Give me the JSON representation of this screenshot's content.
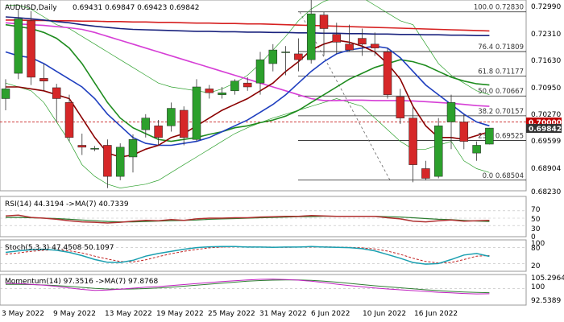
{
  "header": {
    "symbol_title": "AUDUSD,Daily",
    "ohlc_text": "0.69431 0.69847 0.69423 0.69842"
  },
  "colors": {
    "bull": "#2ca02c",
    "bear": "#d62728",
    "ma_dark_red": "#8b0000",
    "ma_blue": "#1f3fbf",
    "ma_green": "#1e8c1e",
    "ma_magenta": "#d63fd6",
    "ma_red": "#d62020",
    "ma_navy": "#1a237e",
    "bollinger": "#2ca02c",
    "fib_line": "#222222",
    "level_red": "#c00000",
    "rsi": "#b03030",
    "rsi_ma": "#2e7d32",
    "stoch_k": "#1a9fb0",
    "stoch_d": "#c02020",
    "momentum": "#c020c0",
    "momentum_ma": "#2e7d32"
  },
  "main_axis": {
    "ticks": [
      "0.72990",
      "0.72310",
      "0.71630",
      "0.70950",
      "0.70270",
      "0.69599",
      "0.68904",
      "0.68230"
    ]
  },
  "price_labels": {
    "red_level": "0.70000",
    "current": "0.69842"
  },
  "fib_levels": [
    {
      "label": "100.0 0.72830",
      "price": 0.7283
    },
    {
      "label": "76.4 0.71809",
      "price": 0.71809
    },
    {
      "label": "61.8 0.71177",
      "price": 0.71177
    },
    {
      "label": "50.0 0.70667",
      "price": 0.70667
    },
    {
      "label": "38.2 0.70157",
      "price": 0.70157
    },
    {
      "label": "23.6 0.69525",
      "price": 0.69525
    },
    {
      "label": "0.0 0.68504",
      "price": 0.68504
    }
  ],
  "x_labels": [
    "3 May 2022",
    "9 May 2022",
    "13 May 2022",
    "19 May 2022",
    "25 May 2022",
    "31 May 2022",
    "6 Jun 2022",
    "10 Jun 2022",
    "16 Jun 2022"
  ],
  "rsi": {
    "label": "RSI(14) 44.3194  ->MA(7) 40.7339",
    "ticks": [
      "70",
      "50",
      "30",
      "0"
    ]
  },
  "stoch": {
    "label": "Stoch(5,3,3) 47.4508 50.1097",
    "ticks": [
      "100",
      "80",
      "20"
    ]
  },
  "momentum": {
    "label": "Momentum(14) 97.3516  ->MA(7) 97.8768",
    "ticks": [
      "105.2964",
      "100",
      "92.5389"
    ]
  },
  "chart_data": {
    "type": "candlestick",
    "title": "AUDUSD,Daily",
    "ylim": [
      0.6823,
      0.7315
    ],
    "candles": [
      {
        "o": 0.706,
        "h": 0.711,
        "l": 0.703,
        "c": 0.7085
      },
      {
        "o": 0.7125,
        "h": 0.729,
        "l": 0.711,
        "c": 0.7265
      },
      {
        "o": 0.726,
        "h": 0.7285,
        "l": 0.7095,
        "c": 0.7115
      },
      {
        "o": 0.7112,
        "h": 0.715,
        "l": 0.708,
        "c": 0.7105
      },
      {
        "o": 0.7088,
        "h": 0.7098,
        "l": 0.7,
        "c": 0.706
      },
      {
        "o": 0.705,
        "h": 0.707,
        "l": 0.695,
        "c": 0.696
      },
      {
        "o": 0.694,
        "h": 0.697,
        "l": 0.6915,
        "c": 0.6935
      },
      {
        "o": 0.693,
        "h": 0.6938,
        "l": 0.6925,
        "c": 0.6932
      },
      {
        "o": 0.694,
        "h": 0.6955,
        "l": 0.683,
        "c": 0.686
      },
      {
        "o": 0.686,
        "h": 0.6945,
        "l": 0.685,
        "c": 0.6935
      },
      {
        "o": 0.691,
        "h": 0.6968,
        "l": 0.687,
        "c": 0.6955
      },
      {
        "o": 0.698,
        "h": 0.702,
        "l": 0.696,
        "c": 0.701
      },
      {
        "o": 0.699,
        "h": 0.7005,
        "l": 0.694,
        "c": 0.696
      },
      {
        "o": 0.699,
        "h": 0.705,
        "l": 0.6975,
        "c": 0.7035
      },
      {
        "o": 0.703,
        "h": 0.704,
        "l": 0.694,
        "c": 0.696
      },
      {
        "o": 0.6955,
        "h": 0.711,
        "l": 0.695,
        "c": 0.709
      },
      {
        "o": 0.7085,
        "h": 0.7095,
        "l": 0.706,
        "c": 0.7075
      },
      {
        "o": 0.707,
        "h": 0.709,
        "l": 0.706,
        "c": 0.7075
      },
      {
        "o": 0.708,
        "h": 0.711,
        "l": 0.707,
        "c": 0.7105
      },
      {
        "o": 0.71,
        "h": 0.7115,
        "l": 0.708,
        "c": 0.709
      },
      {
        "o": 0.71,
        "h": 0.718,
        "l": 0.707,
        "c": 0.716
      },
      {
        "o": 0.715,
        "h": 0.72,
        "l": 0.713,
        "c": 0.7185
      },
      {
        "o": 0.718,
        "h": 0.7195,
        "l": 0.712,
        "c": 0.718
      },
      {
        "o": 0.7175,
        "h": 0.7215,
        "l": 0.713,
        "c": 0.716
      },
      {
        "o": 0.716,
        "h": 0.732,
        "l": 0.715,
        "c": 0.7278
      },
      {
        "o": 0.7275,
        "h": 0.7283,
        "l": 0.717,
        "c": 0.724
      },
      {
        "o": 0.7225,
        "h": 0.7255,
        "l": 0.7175,
        "c": 0.7205
      },
      {
        "o": 0.72,
        "h": 0.725,
        "l": 0.718,
        "c": 0.7185
      },
      {
        "o": 0.7215,
        "h": 0.724,
        "l": 0.717,
        "c": 0.72
      },
      {
        "o": 0.72,
        "h": 0.723,
        "l": 0.717,
        "c": 0.719
      },
      {
        "o": 0.718,
        "h": 0.719,
        "l": 0.706,
        "c": 0.707
      },
      {
        "o": 0.7065,
        "h": 0.7085,
        "l": 0.6995,
        "c": 0.701
      },
      {
        "o": 0.701,
        "h": 0.704,
        "l": 0.6845,
        "c": 0.689
      },
      {
        "o": 0.688,
        "h": 0.69,
        "l": 0.685,
        "c": 0.6855
      },
      {
        "o": 0.686,
        "h": 0.701,
        "l": 0.6855,
        "c": 0.699
      },
      {
        "o": 0.7,
        "h": 0.707,
        "l": 0.693,
        "c": 0.705
      },
      {
        "o": 0.7,
        "h": 0.702,
        "l": 0.693,
        "c": 0.695
      },
      {
        "o": 0.692,
        "h": 0.695,
        "l": 0.69,
        "c": 0.694
      },
      {
        "o": 0.6943,
        "h": 0.69847,
        "l": 0.69423,
        "c": 0.69842
      }
    ],
    "overlays": [
      {
        "name": "ma_red",
        "color": "#d62020",
        "values": [
          0.7262,
          0.7262,
          0.7261,
          0.7261,
          0.726,
          0.726,
          0.7259,
          0.7259,
          0.7258,
          0.7258,
          0.7257,
          0.7257,
          0.7256,
          0.7256,
          0.7255,
          0.7254,
          0.7254,
          0.7253,
          0.7253,
          0.7252,
          0.7252,
          0.7251,
          0.725,
          0.7249,
          0.7248,
          0.7247,
          0.7246,
          0.7245,
          0.7244,
          0.7243,
          0.7242,
          0.7241,
          0.724,
          0.7239,
          0.7238,
          0.7237,
          0.7236,
          0.7235,
          0.7234
        ]
      },
      {
        "name": "ma_navy",
        "color": "#1a237e",
        "values": [
          0.727,
          0.7268,
          0.7265,
          0.7262,
          0.7258,
          0.7255,
          0.725,
          0.7246,
          0.7243,
          0.724,
          0.7238,
          0.7237,
          0.7236,
          0.7235,
          0.7234,
          0.7233,
          0.7233,
          0.7232,
          0.7232,
          0.7231,
          0.7231,
          0.723,
          0.723,
          0.7229,
          0.7229,
          0.7228,
          0.7228,
          0.7227,
          0.7227,
          0.7226,
          0.7226,
          0.7225,
          0.7225,
          0.7224,
          0.7224,
          0.7223,
          0.7223,
          0.7222,
          0.7222
        ]
      },
      {
        "name": "ma_magenta",
        "color": "#d63fd6",
        "values": [
          0.7255,
          0.7252,
          0.725,
          0.7248,
          0.7245,
          0.7242,
          0.7238,
          0.723,
          0.722,
          0.721,
          0.72,
          0.719,
          0.718,
          0.717,
          0.716,
          0.715,
          0.714,
          0.713,
          0.712,
          0.711,
          0.71,
          0.709,
          0.708,
          0.707,
          0.706,
          0.7055,
          0.7055,
          0.7056,
          0.7056,
          0.7055,
          0.7055,
          0.7055,
          0.7054,
          0.7052,
          0.705,
          0.7048,
          0.7045,
          0.7042,
          0.704
        ]
      },
      {
        "name": "ma_green",
        "color": "#1e8c1e",
        "values": [
          0.725,
          0.7245,
          0.724,
          0.723,
          0.7215,
          0.719,
          0.715,
          0.71,
          0.705,
          0.701,
          0.6985,
          0.697,
          0.6955,
          0.695,
          0.6955,
          0.696,
          0.6968,
          0.6975,
          0.6985,
          0.699,
          0.6998,
          0.7005,
          0.7015,
          0.703,
          0.705,
          0.707,
          0.709,
          0.711,
          0.7125,
          0.714,
          0.715,
          0.716,
          0.7155,
          0.7145,
          0.713,
          0.7115,
          0.7105,
          0.7098,
          0.7095
        ]
      },
      {
        "name": "ma_blue",
        "color": "#1f3fbf",
        "values": [
          0.718,
          0.717,
          0.7165,
          0.715,
          0.713,
          0.711,
          0.709,
          0.706,
          0.702,
          0.699,
          0.696,
          0.6945,
          0.694,
          0.694,
          0.6945,
          0.695,
          0.696,
          0.6975,
          0.699,
          0.7005,
          0.7025,
          0.7045,
          0.707,
          0.71,
          0.713,
          0.7155,
          0.7175,
          0.7185,
          0.719,
          0.7195,
          0.719,
          0.7165,
          0.713,
          0.7095,
          0.707,
          0.7045,
          0.702,
          0.7,
          0.699
        ]
      },
      {
        "name": "ma_dark_red",
        "color": "#8b0000",
        "values": [
          0.709,
          0.709,
          0.7085,
          0.708,
          0.707,
          0.706,
          0.701,
          0.696,
          0.692,
          0.691,
          0.6915,
          0.693,
          0.694,
          0.696,
          0.697,
          0.699,
          0.701,
          0.703,
          0.7045,
          0.706,
          0.708,
          0.71,
          0.713,
          0.7155,
          0.7185,
          0.72,
          0.721,
          0.7205,
          0.7195,
          0.718,
          0.715,
          0.711,
          0.704,
          0.699,
          0.696,
          0.696,
          0.6955,
          0.6965,
          0.6975
        ]
      }
    ],
    "bollinger": {
      "color": "#2ca02c",
      "upper": [
        0.73,
        0.73,
        0.729,
        0.727,
        0.725,
        0.724,
        0.722,
        0.72,
        0.718,
        0.716,
        0.714,
        0.712,
        0.71,
        0.709,
        0.7085,
        0.708,
        0.7075,
        0.7085,
        0.71,
        0.712,
        0.715,
        0.7185,
        0.722,
        0.726,
        0.729,
        0.731,
        0.732,
        0.7325,
        0.732,
        0.73,
        0.728,
        0.726,
        0.725,
        0.72,
        0.715,
        0.712,
        0.71,
        0.708,
        0.707
      ],
      "lower": [
        0.71,
        0.709,
        0.708,
        0.705,
        0.7,
        0.695,
        0.689,
        0.686,
        0.684,
        0.683,
        0.6835,
        0.684,
        0.685,
        0.687,
        0.689,
        0.691,
        0.693,
        0.695,
        0.697,
        0.6985,
        0.6998,
        0.701,
        0.702,
        0.703,
        0.704,
        0.705,
        0.706,
        0.705,
        0.704,
        0.701,
        0.698,
        0.695,
        0.693,
        0.693,
        0.694,
        0.695,
        0.69,
        0.688,
        0.687
      ]
    },
    "rsi_values": [
      56,
      58,
      52,
      50,
      47,
      43,
      40,
      39,
      37,
      39,
      42,
      44,
      43,
      46,
      44,
      48,
      50,
      50,
      51,
      51,
      53,
      54,
      55,
      55,
      57,
      56,
      55,
      55,
      55,
      55,
      51,
      48,
      42,
      40,
      43,
      45,
      42,
      43,
      44
    ],
    "rsi_ma_values": [
      52,
      52,
      51,
      50,
      49,
      47,
      45,
      43,
      41,
      40,
      40,
      41,
      42,
      43,
      44,
      45,
      47,
      48,
      49,
      50,
      51,
      52,
      53,
      54,
      54,
      55,
      55,
      55,
      55,
      55,
      54,
      53,
      51,
      49,
      47,
      46,
      44,
      42,
      41
    ],
    "stoch_k_values": [
      62,
      68,
      72,
      74,
      70,
      62,
      50,
      35,
      25,
      24,
      32,
      48,
      58,
      66,
      74,
      80,
      83,
      84,
      84,
      82,
      82,
      81,
      82,
      82,
      84,
      82,
      81,
      80,
      76,
      68,
      54,
      40,
      24,
      18,
      20,
      35,
      52,
      58,
      47
    ],
    "stoch_d_values": [
      55,
      60,
      66,
      70,
      72,
      68,
      60,
      48,
      37,
      28,
      26,
      34,
      46,
      57,
      66,
      73,
      79,
      82,
      83,
      83,
      82,
      82,
      81,
      82,
      82,
      83,
      82,
      81,
      79,
      75,
      67,
      55,
      40,
      28,
      22,
      24,
      35,
      48,
      50
    ],
    "momentum_values": [
      102.5,
      102.4,
      102.0,
      101.6,
      101.0,
      100.2,
      99.5,
      99.0,
      99.2,
      99.6,
      100.1,
      100.6,
      100.9,
      101.4,
      101.9,
      102.4,
      102.9,
      103.4,
      103.8,
      104.2,
      104.5,
      104.6,
      104.4,
      104.1,
      103.6,
      102.9,
      102.1,
      101.4,
      100.8,
      100.2,
      99.7,
      99.3,
      98.9,
      98.5,
      98.1,
      97.8,
      97.5,
      97.3,
      97.35
    ],
    "momentum_ma_values": [
      102.0,
      102.0,
      101.9,
      101.7,
      101.4,
      101.0,
      100.5,
      100.0,
      99.7,
      99.6,
      99.7,
      99.9,
      100.2,
      100.6,
      101.1,
      101.6,
      102.1,
      102.6,
      103.1,
      103.6,
      103.9,
      104.1,
      104.2,
      104.2,
      104.0,
      103.6,
      103.1,
      102.5,
      101.9,
      101.3,
      100.8,
      100.3,
      99.8,
      99.3,
      98.9,
      98.5,
      98.2,
      98.0,
      97.88
    ]
  }
}
